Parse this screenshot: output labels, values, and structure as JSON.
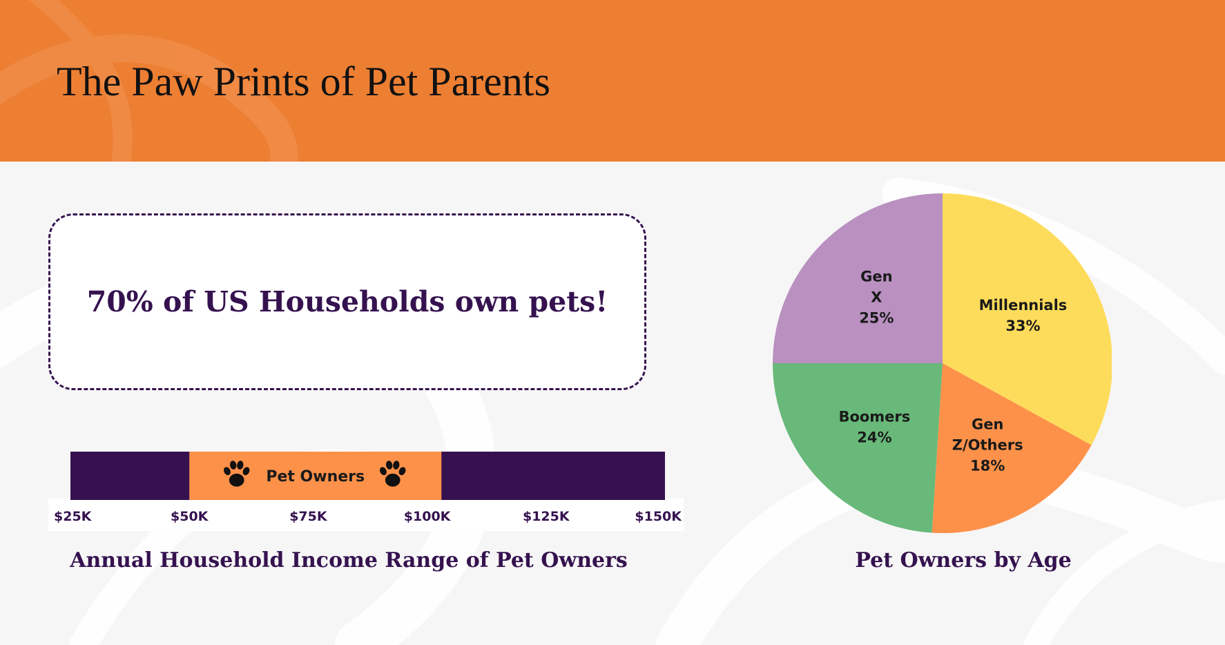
{
  "title": "The Paw Prints of Pet Parents",
  "headline": "70% of US Households own pets!",
  "colors": {
    "header": "#ed7f33",
    "purple": "#35124f",
    "band_orange": "#fd914a",
    "background": "#f6f6f6"
  },
  "icons": {
    "paw": "paw-print-icon"
  },
  "chart_data": [
    {
      "type": "bar",
      "title": "Annual Household Income Range of Pet Owners",
      "x_ticks": [
        "$25K",
        "$50K",
        "$75K",
        "$100K",
        "$125K",
        "$150K"
      ],
      "x_tick_values": [
        25000,
        50000,
        75000,
        100000,
        125000,
        150000
      ],
      "xlim": [
        25000,
        150000
      ],
      "highlight_range": [
        50000,
        103000
      ],
      "highlight_label": "Pet Owners",
      "colors": {
        "range": "#35124f",
        "highlight": "#fd914a"
      },
      "grid": false
    },
    {
      "type": "pie",
      "title": "Pet Owners by Age",
      "start_angle": 0,
      "direction": "clockwise",
      "slices": [
        {
          "label": "Millennials",
          "value": 33,
          "value_text": "33%",
          "color": "#fedc5b"
        },
        {
          "label": "Gen Z/Others",
          "value": 18,
          "value_text": "18%",
          "color": "#fd914a"
        },
        {
          "label": "Boomers",
          "value": 24,
          "value_text": "24%",
          "color": "#68b97a"
        },
        {
          "label": "Gen X",
          "value": 25,
          "value_text": "25%",
          "color": "#b990c0"
        }
      ]
    }
  ]
}
